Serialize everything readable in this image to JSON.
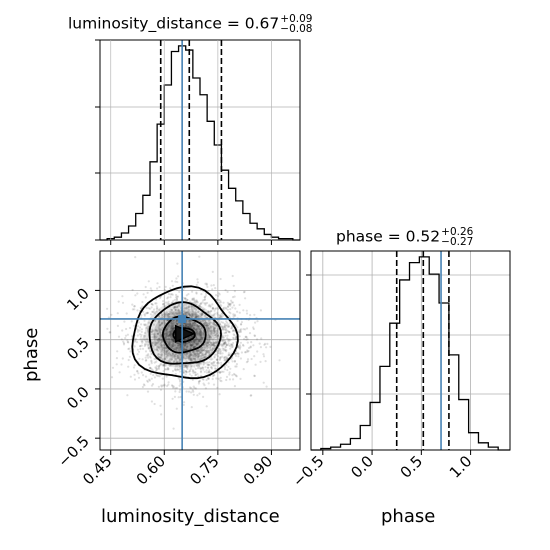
{
  "chart_data": [
    {
      "type": "histogram",
      "panel": "luminosity_distance marginal",
      "param": "luminosity_distance",
      "title_main": "luminosity_distance = 0.67",
      "title_upper": "+0.09",
      "title_lower": "−0.08",
      "xlim": [
        0.42,
        0.98
      ],
      "bins": [
        0.42,
        0.44,
        0.46,
        0.48,
        0.5,
        0.52,
        0.54,
        0.56,
        0.58,
        0.6,
        0.62,
        0.64,
        0.66,
        0.68,
        0.7,
        0.72,
        0.74,
        0.76,
        0.78,
        0.8,
        0.82,
        0.84,
        0.86,
        0.88,
        0.9,
        0.92,
        0.94,
        0.96,
        0.98
      ],
      "counts": [
        0,
        1,
        2,
        5,
        10,
        19,
        32,
        56,
        83,
        111,
        135,
        139,
        136,
        116,
        104,
        85,
        68,
        50,
        37,
        28,
        19,
        12,
        8,
        4,
        2,
        1,
        1,
        0
      ],
      "quantiles": [
        0.59,
        0.67,
        0.76
      ],
      "truth": 0.65
    },
    {
      "type": "scatter",
      "panel": "2D posterior",
      "xlabel": "luminosity_distance",
      "ylabel": "phase",
      "xlim": [
        0.42,
        0.98
      ],
      "ylim": [
        -0.62,
        1.4
      ],
      "xticks": [
        "0.45",
        "0.60",
        "0.75",
        "0.90"
      ],
      "xtick_values": [
        0.45,
        0.6,
        0.75,
        0.9
      ],
      "yticks": [
        "−0.5",
        "0.0",
        "0.5",
        "1.0"
      ],
      "ytick_values": [
        -0.5,
        0.0,
        0.5,
        1.0
      ],
      "center": [
        0.67,
        0.52
      ],
      "spread": [
        0.085,
        0.27
      ],
      "contour_levels": [
        {
          "name": "outer",
          "rx": 0.145,
          "ry": 0.46
        },
        {
          "name": "second",
          "rx": 0.1,
          "ry": 0.31
        },
        {
          "name": "third",
          "rx": 0.06,
          "ry": 0.18
        },
        {
          "name": "inner",
          "rx": 0.03,
          "ry": 0.07
        }
      ],
      "truth": [
        0.65,
        0.71
      ]
    },
    {
      "type": "histogram",
      "panel": "phase marginal",
      "param": "phase",
      "title_main": "phase = 0.52",
      "title_upper": "+0.26",
      "title_lower": "−0.27",
      "xlim": [
        -0.62,
        1.4
      ],
      "bins": [
        -0.62,
        -0.52,
        -0.42,
        -0.32,
        -0.22,
        -0.12,
        -0.02,
        0.08,
        0.18,
        0.28,
        0.38,
        0.48,
        0.58,
        0.68,
        0.78,
        0.88,
        0.98,
        1.08,
        1.18,
        1.28,
        1.4
      ],
      "counts": [
        0,
        1,
        2,
        4,
        8,
        17,
        33,
        58,
        88,
        118,
        130,
        134,
        122,
        102,
        66,
        35,
        12,
        5,
        2,
        0
      ],
      "xticks": [
        "−0.5",
        "0.0",
        "0.5",
        "1.0"
      ],
      "xtick_values": [
        -0.5,
        0.0,
        0.5,
        1.0
      ],
      "quantiles": [
        0.25,
        0.52,
        0.78
      ],
      "truth": 0.7,
      "xlabel": "phase"
    }
  ],
  "colors": {
    "truth": "#4682b4",
    "line": "#000000",
    "grid": "#b0b0b0"
  }
}
